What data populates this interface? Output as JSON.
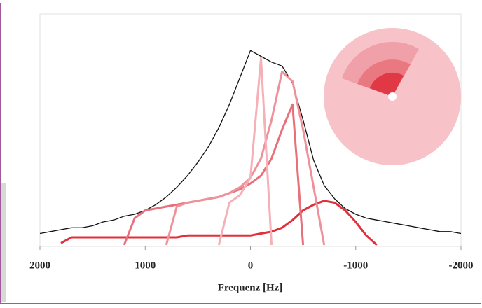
{
  "chart_data": {
    "type": "line",
    "xlabel": "Frequenz [Hz]",
    "x": [
      2000,
      1900,
      1800,
      1700,
      1600,
      1500,
      1400,
      1300,
      1200,
      1100,
      1000,
      900,
      800,
      700,
      600,
      500,
      400,
      300,
      200,
      100,
      0,
      -100,
      -200,
      -300,
      -400,
      -500,
      -600,
      -700,
      -800,
      -900,
      -1000,
      -1100,
      -1200,
      -1300,
      -1400,
      -1500,
      -1600,
      -1700,
      -1800,
      -1900,
      -2000
    ],
    "xlim": [
      2000,
      -2000
    ],
    "xticks": [
      2000,
      1000,
      0,
      -1000,
      -2000
    ],
    "ylim": [
      0,
      120
    ],
    "series": [
      {
        "color": "#111111",
        "values": [
          6,
          7,
          8,
          9,
          9,
          10,
          12,
          13,
          15,
          16,
          18,
          21,
          25,
          30,
          36,
          43,
          51,
          61,
          73,
          87,
          101,
          98,
          95,
          93,
          84,
          65,
          44,
          31,
          24,
          19,
          16,
          14,
          13,
          12,
          11,
          10,
          9,
          8,
          7,
          7,
          6
        ]
      },
      {
        "color": "#e0303a",
        "values": [
          null,
          null,
          1,
          4,
          4,
          4,
          4,
          4,
          4,
          4,
          4,
          4,
          4,
          4,
          5,
          5,
          5,
          5,
          5,
          5,
          5,
          6,
          7,
          9,
          13,
          18,
          21,
          23,
          22,
          18,
          12,
          5,
          0,
          null,
          null,
          null,
          null,
          null,
          null,
          null,
          null
        ]
      },
      {
        "color": "#e8707a",
        "values": [
          null,
          null,
          null,
          null,
          null,
          null,
          null,
          null,
          0,
          14,
          18,
          19,
          20,
          21,
          22,
          23,
          24,
          25,
          27,
          29,
          32,
          36,
          45,
          60,
          73,
          0,
          null,
          null,
          null,
          null,
          null,
          null,
          null,
          null,
          null,
          null,
          null,
          null,
          null,
          null,
          null
        ]
      },
      {
        "color": "#f0909a",
        "values": [
          null,
          null,
          null,
          null,
          null,
          null,
          null,
          null,
          null,
          null,
          null,
          null,
          0,
          20,
          22,
          23,
          24,
          25,
          27,
          30,
          35,
          45,
          65,
          90,
          85,
          60,
          30,
          0,
          null,
          null,
          null,
          null,
          null,
          null,
          null,
          null,
          null,
          null,
          null,
          null,
          null
        ]
      },
      {
        "color": "#f6b0b8",
        "values": [
          null,
          null,
          null,
          null,
          null,
          null,
          null,
          null,
          null,
          null,
          null,
          null,
          null,
          null,
          null,
          null,
          null,
          0,
          22,
          26,
          35,
          97,
          0,
          null,
          null,
          null,
          null,
          null,
          null,
          null,
          null,
          null,
          null,
          null,
          null,
          null,
          null,
          null,
          null,
          null,
          null
        ]
      }
    ]
  }
}
